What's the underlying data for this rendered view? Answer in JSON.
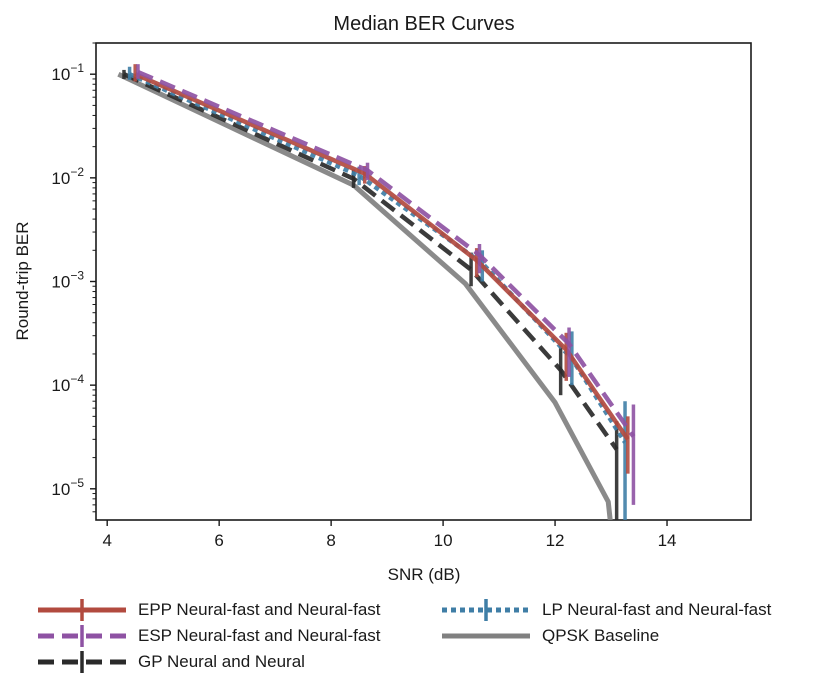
{
  "chart_data": {
    "type": "line",
    "title": "Median BER Curves",
    "xlabel": "SNR (dB)",
    "ylabel": "Round-trip BER",
    "xscale": "linear",
    "yscale": "log",
    "xlim": [
      3.8,
      15.5
    ],
    "ylim": [
      5e-06,
      0.2
    ],
    "xticks": [
      4,
      6,
      8,
      10,
      12,
      14
    ],
    "xtick_labels": [
      "4",
      "6",
      "8",
      "10",
      "12",
      "14"
    ],
    "yticks": [
      1e-05,
      0.0001,
      0.001,
      0.01,
      0.1
    ],
    "ytick_exponents": [
      "−5",
      "−4",
      "−3",
      "−2",
      "−1"
    ],
    "ytick_base": "10",
    "legend_position": "below",
    "series": [
      {
        "name": "EPP Neural-fast and Neural-fast",
        "color": "#b24a3f",
        "style": "solid",
        "x": [
          4.5,
          8.6,
          10.6,
          12.2,
          13.3
        ],
        "y": [
          0.1,
          0.011,
          0.0016,
          0.00022,
          3e-05
        ],
        "err_low": [
          0.085,
          0.0088,
          0.0011,
          0.00011,
          1.4e-05
        ],
        "err_high": [
          0.125,
          0.013,
          0.0021,
          0.00032,
          5e-05
        ]
      },
      {
        "name": "ESP Neural-fast and Neural-fast",
        "color": "#8e52a3",
        "style": "dashed",
        "x": [
          4.55,
          8.65,
          10.65,
          12.25,
          13.4
        ],
        "y": [
          0.105,
          0.0118,
          0.0018,
          0.00025,
          3.2e-05
        ],
        "err_low": [
          0.09,
          0.0095,
          0.0012,
          0.00012,
          7e-06
        ],
        "err_high": [
          0.125,
          0.014,
          0.0023,
          0.00036,
          6.5e-05
        ]
      },
      {
        "name": "GP Neural and Neural",
        "color": "#2a2a2a",
        "style": "dashed",
        "x": [
          4.3,
          8.4,
          10.5,
          12.1,
          13.1
        ],
        "y": [
          0.1,
          0.0098,
          0.0013,
          0.00014,
          2.4e-05
        ],
        "err_low": [
          0.09,
          0.008,
          0.0009,
          8e-05,
          5e-06
        ],
        "err_high": [
          0.11,
          0.012,
          0.0019,
          0.00024,
          4.5e-05
        ]
      },
      {
        "name": "LP Neural-fast and Neural-fast",
        "color": "#3f7ea6",
        "style": "dotted",
        "x": [
          4.4,
          8.5,
          10.7,
          12.3,
          13.25
        ],
        "y": [
          0.1,
          0.0105,
          0.0015,
          0.00018,
          2.8e-05
        ],
        "err_low": [
          0.088,
          0.0085,
          0.001,
          0.0001,
          5e-06
        ],
        "err_high": [
          0.118,
          0.0128,
          0.002,
          0.00033,
          7e-05
        ]
      },
      {
        "name": "QPSK Baseline",
        "color": "#808080",
        "style": "solid",
        "x": [
          4.2,
          8.4,
          10.4,
          12.0,
          12.95,
          13.0
        ],
        "y": [
          0.1,
          0.0085,
          0.00095,
          6.8e-05,
          7.5e-06,
          4.2e-06
        ]
      }
    ]
  }
}
